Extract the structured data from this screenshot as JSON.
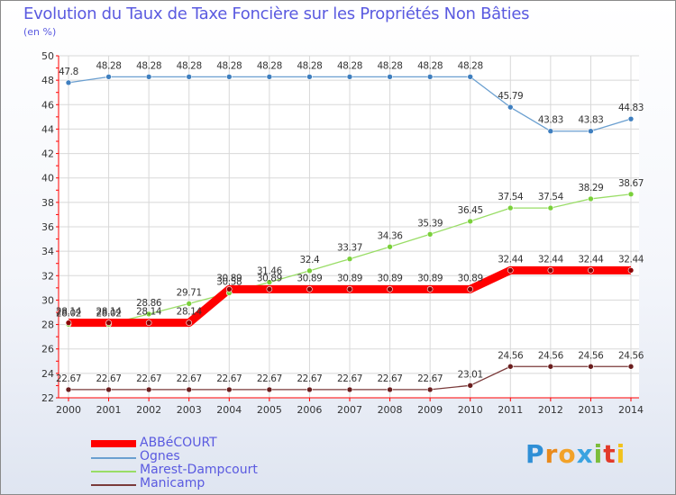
{
  "header": {
    "title": "Evolution du Taux de Taxe Foncière sur les Propriétés Non Bâties",
    "subtitle": "(en %)"
  },
  "brand": {
    "text": [
      "P",
      "r",
      "o",
      "x",
      "i",
      "t",
      "i"
    ],
    "colors": [
      "#2f8fd6",
      "#e98a1c",
      "#f2a229",
      "#3aa3e0",
      "#7cbd3b",
      "#e23a2a",
      "#f2c21c"
    ]
  },
  "chart_data": {
    "type": "line",
    "title": "Evolution du Taux de Taxe Foncière sur les Propriétés Non Bâties",
    "ylabel": "(en %)",
    "xlabel": "",
    "ylim": [
      22,
      50
    ],
    "yticks": [
      22,
      24,
      26,
      28,
      30,
      32,
      34,
      36,
      38,
      40,
      42,
      44,
      46,
      48,
      50
    ],
    "grid": true,
    "legend_position": "bottom-left",
    "x": [
      "2000",
      "2001",
      "2002",
      "2003",
      "2004",
      "2005",
      "2006",
      "2007",
      "2008",
      "2009",
      "2010",
      "2011",
      "2012",
      "2013",
      "2014"
    ],
    "series": [
      {
        "name": "ABBéCOURT",
        "color": "#ff0000",
        "values": [
          28.14,
          28.14,
          28.14,
          28.14,
          30.89,
          30.89,
          30.89,
          30.89,
          30.89,
          30.89,
          30.89,
          32.44,
          32.44,
          32.44,
          32.44
        ],
        "labels": [
          "28.14",
          "28.14",
          "28.14",
          "28.14",
          "30.89",
          "30.89",
          "30.89",
          "30.89",
          "30.89",
          "30.89",
          "30.89",
          "32.44",
          "32.44",
          "32.44",
          "32.44"
        ]
      },
      {
        "name": "Ognes",
        "color": "#6a9fd0",
        "values": [
          47.8,
          48.28,
          48.28,
          48.28,
          48.28,
          48.28,
          48.28,
          48.28,
          48.28,
          48.28,
          48.28,
          45.79,
          43.83,
          43.83,
          44.83
        ],
        "labels": [
          "47.8",
          "48.28",
          "48.28",
          "48.28",
          "48.28",
          "48.28",
          "48.28",
          "48.28",
          "48.28",
          "48.28",
          "48.28",
          "45.79",
          "43.83",
          "43.83",
          "44.83"
        ]
      },
      {
        "name": "Marest-Dampcourt",
        "color": "#99dd66",
        "values": [
          28.02,
          28.02,
          28.86,
          29.71,
          30.58,
          31.46,
          32.4,
          33.37,
          34.36,
          35.39,
          36.45,
          37.54,
          37.54,
          38.29,
          38.67
        ],
        "labels": [
          "28.02",
          "28.02",
          "28.86",
          "29.71",
          "30.58",
          "31.46",
          "32.4",
          "33.37",
          "34.36",
          "35.39",
          "36.45",
          "37.54",
          "37.54",
          "38.29",
          "38.67"
        ]
      },
      {
        "name": "Manicamp",
        "color": "#7a3a3a",
        "values": [
          22.67,
          22.67,
          22.67,
          22.67,
          22.67,
          22.67,
          22.67,
          22.67,
          22.67,
          22.67,
          23.01,
          24.56,
          24.56,
          24.56,
          24.56
        ],
        "labels": [
          "22.67",
          "22.67",
          "22.67",
          "22.67",
          "22.67",
          "22.67",
          "22.67",
          "22.67",
          "22.67",
          "22.67",
          "23.01",
          "24.56",
          "24.56",
          "24.56",
          "24.56"
        ]
      }
    ]
  }
}
